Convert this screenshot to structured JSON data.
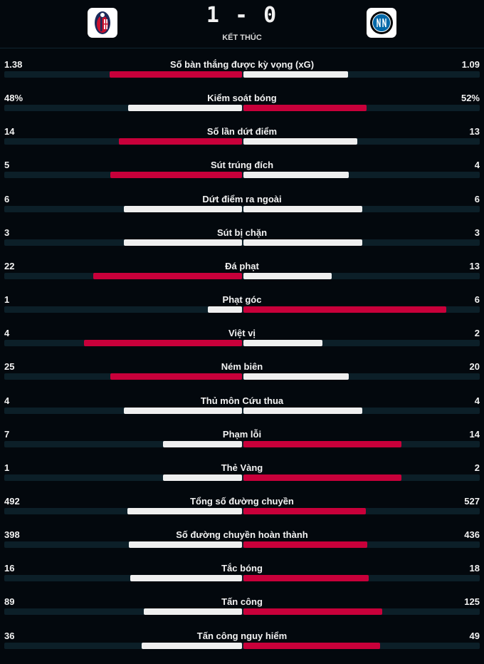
{
  "match": {
    "home_score": "1",
    "away_score": "0",
    "score_text": "1 - 0",
    "status": "KẾT THÚC",
    "home_team": "Bologna",
    "away_team": "Inter"
  },
  "colors": {
    "higher": "#c8003a",
    "lower": "#efefef",
    "track": "#0c1f28",
    "background": "#03080d"
  },
  "stats": [
    {
      "label": "Số bàn thắng được kỳ vọng (xG)",
      "home": "1.38",
      "away": "1.09",
      "hv": 1.38,
      "av": 1.09
    },
    {
      "label": "Kiểm soát bóng",
      "home": "48%",
      "away": "52%",
      "hv": 48,
      "av": 52
    },
    {
      "label": "Số lần dứt điểm",
      "home": "14",
      "away": "13",
      "hv": 14,
      "av": 13
    },
    {
      "label": "Sút trúng đích",
      "home": "5",
      "away": "4",
      "hv": 5,
      "av": 4
    },
    {
      "label": "Dứt điểm ra ngoài",
      "home": "6",
      "away": "6",
      "hv": 6,
      "av": 6
    },
    {
      "label": "Sút bị chặn",
      "home": "3",
      "away": "3",
      "hv": 3,
      "av": 3
    },
    {
      "label": "Đá phạt",
      "home": "22",
      "away": "13",
      "hv": 22,
      "av": 13
    },
    {
      "label": "Phạt góc",
      "home": "1",
      "away": "6",
      "hv": 1,
      "av": 6
    },
    {
      "label": "Việt vị",
      "home": "4",
      "away": "2",
      "hv": 4,
      "av": 2
    },
    {
      "label": "Ném biên",
      "home": "25",
      "away": "20",
      "hv": 25,
      "av": 20
    },
    {
      "label": "Thủ môn Cứu thua",
      "home": "4",
      "away": "4",
      "hv": 4,
      "av": 4
    },
    {
      "label": "Phạm lỗi",
      "home": "7",
      "away": "14",
      "hv": 7,
      "av": 14
    },
    {
      "label": "Thẻ Vàng",
      "home": "1",
      "away": "2",
      "hv": 1,
      "av": 2
    },
    {
      "label": "Tổng số đường chuyền",
      "home": "492",
      "away": "527",
      "hv": 492,
      "av": 527
    },
    {
      "label": "Số đường chuyền hoàn thành",
      "home": "398",
      "away": "436",
      "hv": 398,
      "av": 436
    },
    {
      "label": "Tắc bóng",
      "home": "16",
      "away": "18",
      "hv": 16,
      "av": 18
    },
    {
      "label": "Tấn công",
      "home": "89",
      "away": "125",
      "hv": 89,
      "av": 125
    },
    {
      "label": "Tấn công nguy hiểm",
      "home": "36",
      "away": "49",
      "hv": 36,
      "av": 49
    }
  ]
}
